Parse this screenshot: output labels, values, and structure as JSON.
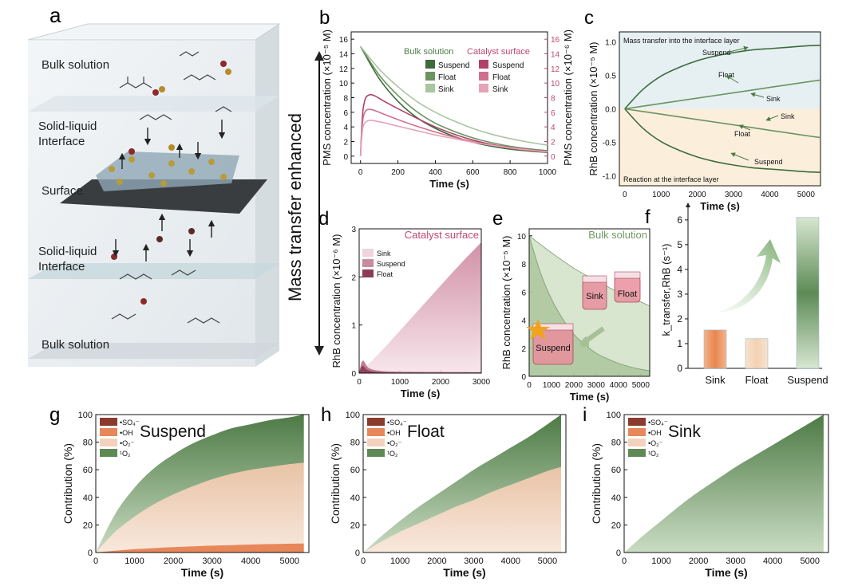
{
  "panels": {
    "a": {
      "label": "a",
      "layers": [
        "Bulk solution",
        "Solid-liquid\nInterface",
        "Surface",
        "Solid-liquid\nInterface",
        "Bulk solution"
      ],
      "side_text": "Mass transfer enhanced"
    },
    "b": {
      "label": "b"
    },
    "c": {
      "label": "c"
    },
    "d": {
      "label": "d"
    },
    "e": {
      "label": "e"
    },
    "f": {
      "label": "f"
    },
    "g": {
      "label": "g"
    },
    "h": {
      "label": "h"
    },
    "i": {
      "label": "i"
    }
  },
  "colors": {
    "suspend_green": "#3d6b3a",
    "float_green": "#6b9460",
    "sink_green": "#a9c6a0",
    "suspend_pink": "#b0426a",
    "float_pink": "#d0708e",
    "sink_pink": "#e6a4b6",
    "so4": "#8b3a2e",
    "oh": "#e8875a",
    "o2m": "#f3d2bd",
    "o1": "#5f8a55"
  },
  "chart_data": [
    {
      "id": "b",
      "type": "line",
      "xlabel": "Time (s)",
      "xlim": [
        -50,
        1000
      ],
      "xticks": [
        0,
        200,
        400,
        600,
        800,
        1000
      ],
      "ylabel": "PMS concentration (×10⁻⁵ M)",
      "ylim": [
        -1,
        17
      ],
      "yticks": [
        0,
        2,
        4,
        6,
        8,
        10,
        12,
        14,
        16
      ],
      "y2label": "PMS concentration (×10⁻⁶ M)",
      "y2lim": [
        -1,
        17
      ],
      "legend_groups": [
        "Bulk solution",
        "Catalyst surface"
      ],
      "series": [
        {
          "name": "Suspend",
          "group": "Bulk solution",
          "axis": "left",
          "x": [
            0,
            100,
            200,
            300,
            400,
            500,
            600,
            700,
            800,
            900,
            1000
          ],
          "y": [
            15.0,
            10.6,
            7.5,
            5.3,
            3.8,
            2.7,
            1.9,
            1.35,
            0.95,
            0.7,
            0.5
          ]
        },
        {
          "name": "Float",
          "group": "Bulk solution",
          "axis": "left",
          "x": [
            0,
            100,
            200,
            300,
            400,
            500,
            600,
            700,
            800,
            900,
            1000
          ],
          "y": [
            15.0,
            11.1,
            8.3,
            6.1,
            4.5,
            3.4,
            2.5,
            1.85,
            1.35,
            1.0,
            0.75
          ]
        },
        {
          "name": "Sink",
          "group": "Bulk solution",
          "axis": "left",
          "x": [
            0,
            100,
            200,
            300,
            400,
            500,
            600,
            700,
            800,
            900,
            1000
          ],
          "y": [
            15.0,
            11.9,
            9.5,
            7.5,
            6.0,
            4.8,
            3.8,
            3.0,
            2.4,
            1.9,
            1.5
          ]
        },
        {
          "name": "Suspend",
          "group": "Catalyst surface",
          "axis": "right",
          "x": [
            0,
            10,
            25,
            50,
            80,
            120,
            200,
            300,
            400,
            500,
            600,
            700,
            800,
            900,
            1000
          ],
          "y": [
            0,
            5.5,
            7.8,
            8.4,
            8.2,
            7.6,
            6.5,
            5.2,
            4.0,
            3.0,
            2.2,
            1.6,
            1.2,
            0.9,
            0.6
          ]
        },
        {
          "name": "Float",
          "group": "Catalyst surface",
          "axis": "right",
          "x": [
            0,
            10,
            25,
            50,
            80,
            120,
            200,
            300,
            400,
            500,
            600,
            700,
            800,
            900,
            1000
          ],
          "y": [
            0,
            4.5,
            6.1,
            6.4,
            6.2,
            5.8,
            5.0,
            4.1,
            3.3,
            2.6,
            2.0,
            1.5,
            1.1,
            0.8,
            0.55
          ]
        },
        {
          "name": "Sink",
          "group": "Catalyst surface",
          "axis": "right",
          "x": [
            0,
            10,
            25,
            50,
            80,
            120,
            200,
            300,
            400,
            500,
            600,
            700,
            800,
            900,
            1000
          ],
          "y": [
            0,
            3.5,
            4.6,
            4.9,
            4.8,
            4.6,
            4.1,
            3.5,
            2.9,
            2.4,
            1.9,
            1.5,
            1.15,
            0.85,
            0.6
          ]
        }
      ]
    },
    {
      "id": "c",
      "type": "line",
      "xlabel": "Time (s)",
      "xlim": [
        -150,
        5400
      ],
      "xticks": [
        0,
        1000,
        2000,
        3000,
        4000,
        5000
      ],
      "ylabel": "RhB concentration (×10⁻⁵ M)",
      "ylim": [
        -1.15,
        1.15
      ],
      "yticks": [
        -1.0,
        -0.5,
        0.0,
        0.5,
        1.0
      ],
      "annotations": [
        "Mass transfer into the interface layer",
        "Reaction at the  interface layer"
      ],
      "series": [
        {
          "name": "Suspend",
          "x": [
            0,
            500,
            1000,
            1500,
            2000,
            2500,
            3000,
            3500,
            4000,
            4500,
            5000,
            5400
          ],
          "y": [
            0,
            0.29,
            0.49,
            0.62,
            0.72,
            0.79,
            0.84,
            0.88,
            0.9,
            0.92,
            0.94,
            0.95
          ]
        },
        {
          "name": "Float",
          "x": [
            0,
            1000,
            2000,
            3000,
            4000,
            5000,
            5400
          ],
          "y": [
            0,
            0.08,
            0.16,
            0.24,
            0.32,
            0.4,
            0.43
          ]
        },
        {
          "name": "Sink",
          "x": [
            0,
            1000,
            2000,
            3000,
            4000,
            5000,
            5400
          ],
          "y": [
            0,
            -0.08,
            -0.16,
            -0.24,
            -0.32,
            -0.4,
            -0.43
          ]
        },
        {
          "name": "Suspend",
          "x": [
            0,
            500,
            1000,
            1500,
            2000,
            2500,
            3000,
            3500,
            4000,
            4500,
            5000,
            5400
          ],
          "y": [
            0,
            -0.29,
            -0.49,
            -0.62,
            -0.72,
            -0.79,
            -0.84,
            -0.88,
            -0.9,
            -0.92,
            -0.94,
            -0.95
          ]
        }
      ],
      "labels": [
        "Suspend",
        "Float",
        "Sink",
        "Sink",
        "Float",
        "Suspend"
      ]
    },
    {
      "id": "d",
      "type": "area",
      "title": "Catalyst surface",
      "xlabel": "Time (s)",
      "xlim": [
        0,
        3000
      ],
      "xticks": [
        0,
        1000,
        2000,
        3000
      ],
      "ylabel": "RhB concentration (×10⁻⁶ M)",
      "ylim": [
        0,
        3
      ],
      "yticks": [
        0,
        1,
        2,
        3
      ],
      "series": [
        {
          "name": "Sink",
          "x": [
            0,
            500,
            1000,
            1500,
            2000,
            2500,
            3000
          ],
          "y": [
            0,
            0.42,
            0.88,
            1.35,
            1.82,
            2.28,
            2.72
          ]
        },
        {
          "name": "Suspend",
          "x": [
            0,
            50,
            100,
            150,
            250,
            500,
            1000,
            3000
          ],
          "y": [
            0,
            0.2,
            0.26,
            0.2,
            0.1,
            0.05,
            0.03,
            0.02
          ]
        },
        {
          "name": "Float",
          "x": [
            0,
            50,
            100,
            150,
            250,
            500,
            1000,
            3000
          ],
          "y": [
            0,
            0.12,
            0.15,
            0.1,
            0.05,
            0.02,
            0.01,
            0.01
          ]
        }
      ]
    },
    {
      "id": "e",
      "type": "area",
      "title": "Bulk solution",
      "xlabel": "Time (s)",
      "xlim": [
        0,
        5400
      ],
      "xticks": [
        0,
        1000,
        2000,
        3000,
        4000,
        5000
      ],
      "ylabel": "RhB concentration (×10⁻⁵ M)",
      "ylim": [
        0,
        10.5
      ],
      "yticks": [
        0,
        2,
        4,
        6,
        8,
        10
      ],
      "series": [
        {
          "name": "Sink",
          "x": [
            0,
            1000,
            2000,
            3000,
            4000,
            5000,
            5400
          ],
          "y": [
            10,
            8.8,
            7.7,
            6.8,
            6.0,
            5.3,
            5.0
          ]
        },
        {
          "name": "Suspend",
          "x": [
            0,
            500,
            1000,
            1500,
            2000,
            2500,
            3000,
            3500,
            4000,
            4500,
            5000,
            5400
          ],
          "y": [
            10,
            7.4,
            5.5,
            4.1,
            3.0,
            2.25,
            1.65,
            1.25,
            0.92,
            0.68,
            0.5,
            0.4
          ]
        }
      ],
      "inset_labels": [
        "Suspend",
        "Sink",
        "Float"
      ]
    },
    {
      "id": "f",
      "type": "bar",
      "categories": [
        "Sink",
        "Float",
        "Suspend"
      ],
      "values": [
        1.55,
        1.2,
        6.1
      ],
      "ylabel": "k_transfer,RhB (s⁻¹)",
      "ylim": [
        0,
        6.35
      ],
      "yticks": [
        0,
        1,
        2,
        3,
        4,
        5,
        6
      ]
    },
    {
      "id": "g",
      "type": "area",
      "title": "Suspend",
      "xlabel": "Time (s)",
      "xlim": [
        0,
        5500
      ],
      "xticks": [
        0,
        1000,
        2000,
        3000,
        4000,
        5000
      ],
      "ylabel": "Contribution (%)",
      "ylim": [
        0,
        100
      ],
      "yticks": [
        0,
        20,
        40,
        60,
        80,
        100
      ],
      "series": [
        {
          "name": "•SO₄⁻",
          "cumulative_top": [
            0,
            0.1,
            0.2,
            0.2,
            0.3,
            0.3,
            0.3,
            0.3,
            0.4,
            0.4,
            0.4,
            0.4
          ]
        },
        {
          "name": "•OH",
          "cumulative_top": [
            0,
            1.3,
            2.4,
            3.2,
            3.9,
            4.5,
            5.0,
            5.4,
            5.8,
            6.1,
            6.4,
            6.6
          ]
        },
        {
          "name": "•O₂⁻",
          "cumulative_top": [
            0,
            15,
            26,
            35,
            42,
            48,
            53,
            57,
            60,
            62,
            64,
            65
          ]
        },
        {
          "name": "¹O₂",
          "cumulative_top": [
            0,
            28,
            47,
            61,
            71,
            79,
            85,
            90,
            93,
            96,
            98,
            100
          ]
        }
      ],
      "x": [
        0,
        500,
        1000,
        1500,
        2000,
        2500,
        3000,
        3500,
        4000,
        4500,
        5000,
        5370
      ]
    },
    {
      "id": "h",
      "type": "area",
      "title": "Float",
      "xlabel": "Time (s)",
      "xlim": [
        0,
        5500
      ],
      "xticks": [
        0,
        1000,
        2000,
        3000,
        4000,
        5000
      ],
      "ylabel": "Contribution (%)",
      "ylim": [
        0,
        100
      ],
      "yticks": [
        0,
        20,
        40,
        60,
        80,
        100
      ],
      "series": [
        {
          "name": "•SO₄⁻",
          "cumulative_top": [
            0,
            0,
            0,
            0,
            0,
            0,
            0,
            0,
            0,
            0,
            0,
            0
          ]
        },
        {
          "name": "•OH",
          "cumulative_top": [
            0,
            0,
            0,
            0,
            0,
            0,
            0,
            0,
            0,
            0,
            0,
            0
          ]
        },
        {
          "name": "•O₂⁻",
          "cumulative_top": [
            0,
            8,
            15,
            21,
            27,
            33,
            38,
            44,
            49,
            54,
            59,
            62
          ]
        },
        {
          "name": "¹O₂",
          "cumulative_top": [
            0,
            12,
            23,
            33,
            42,
            51,
            60,
            68,
            76,
            84,
            93,
            100
          ]
        }
      ],
      "x": [
        0,
        500,
        1000,
        1500,
        2000,
        2500,
        3000,
        3500,
        4000,
        4500,
        5000,
        5370
      ]
    },
    {
      "id": "i",
      "type": "area",
      "title": "Sink",
      "xlabel": "Time (s)",
      "xlim": [
        0,
        5500
      ],
      "xticks": [
        0,
        1000,
        2000,
        3000,
        4000,
        5000
      ],
      "ylabel": "Contribution (%)",
      "ylim": [
        0,
        100
      ],
      "yticks": [
        0,
        20,
        40,
        60,
        80,
        100
      ],
      "series": [
        {
          "name": "•SO₄⁻",
          "cumulative_top": [
            0,
            0,
            0,
            0,
            0,
            0,
            0,
            0,
            0,
            0,
            0,
            0
          ]
        },
        {
          "name": "•OH",
          "cumulative_top": [
            0,
            0,
            0,
            0,
            0,
            0,
            0,
            0,
            0,
            0,
            0,
            0
          ]
        },
        {
          "name": "•O₂⁻",
          "cumulative_top": [
            0,
            0,
            0,
            0,
            0,
            0,
            0,
            0,
            0,
            0,
            0,
            0
          ]
        },
        {
          "name": "¹O₂",
          "cumulative_top": [
            0,
            12,
            23,
            34,
            44,
            53,
            62,
            70,
            78,
            86,
            94,
            100
          ]
        }
      ],
      "x": [
        0,
        500,
        1000,
        1500,
        2000,
        2500,
        3000,
        3500,
        4000,
        4500,
        5000,
        5370
      ]
    }
  ]
}
